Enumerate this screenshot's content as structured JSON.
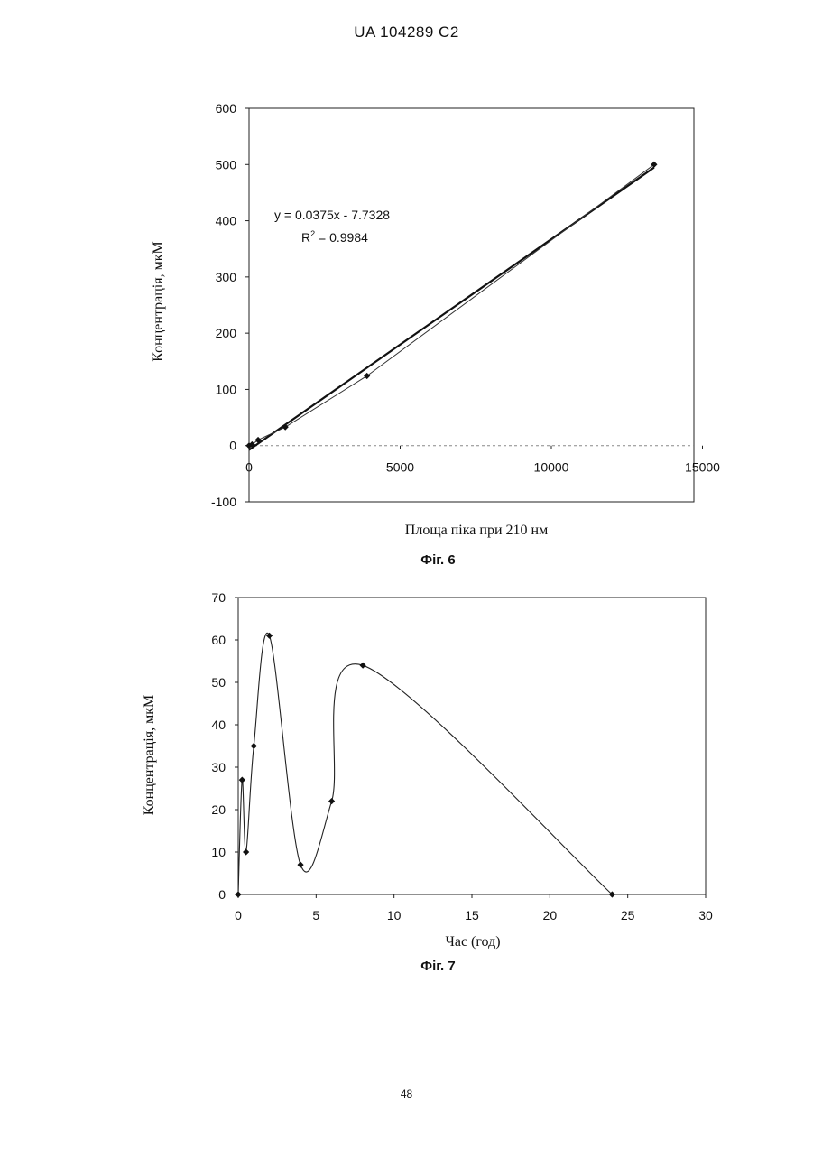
{
  "header": {
    "doc_id": "UA   104289   C2"
  },
  "page_number": "48",
  "chart_data": [
    {
      "type": "scatter",
      "caption": "Фіг. 6",
      "xlabel": "Площа піка при 210 нм",
      "ylabel": "Концентрація,  мкМ",
      "xlim": [
        -50,
        15000
      ],
      "ylim": [
        -100,
        600
      ],
      "x_ticks": [
        "0",
        "5000",
        "10000",
        "15000"
      ],
      "y_ticks": [
        "-100",
        "0",
        "100",
        "200",
        "300",
        "400",
        "500",
        "600"
      ],
      "grid": false,
      "trendline": {
        "slope": 0.0375,
        "intercept": -7.7328
      },
      "equation": "y = 0.0375x - 7.7328",
      "r2_label": "R",
      "r2_value": " = 0.9984",
      "series": [
        {
          "x": [
            0,
            100,
            300,
            1200,
            3900,
            13400
          ],
          "y": [
            0,
            2,
            10,
            33,
            124,
            500
          ]
        }
      ]
    },
    {
      "type": "line",
      "caption": "Фіг. 7",
      "xlabel": "Час (год)",
      "ylabel": "Концентрація,  мкМ",
      "xlim": [
        0,
        30
      ],
      "ylim": [
        0,
        70
      ],
      "x_ticks": [
        "0",
        "5",
        "10",
        "15",
        "20",
        "25",
        "30"
      ],
      "y_ticks": [
        "0",
        "10",
        "20",
        "30",
        "40",
        "50",
        "60",
        "70"
      ],
      "grid": false,
      "smoothed": true,
      "series": [
        {
          "x": [
            0,
            0.25,
            0.5,
            1,
            2,
            4,
            6,
            8,
            24
          ],
          "y": [
            0,
            27,
            10,
            35,
            61,
            7,
            22,
            54,
            0
          ]
        }
      ]
    }
  ]
}
